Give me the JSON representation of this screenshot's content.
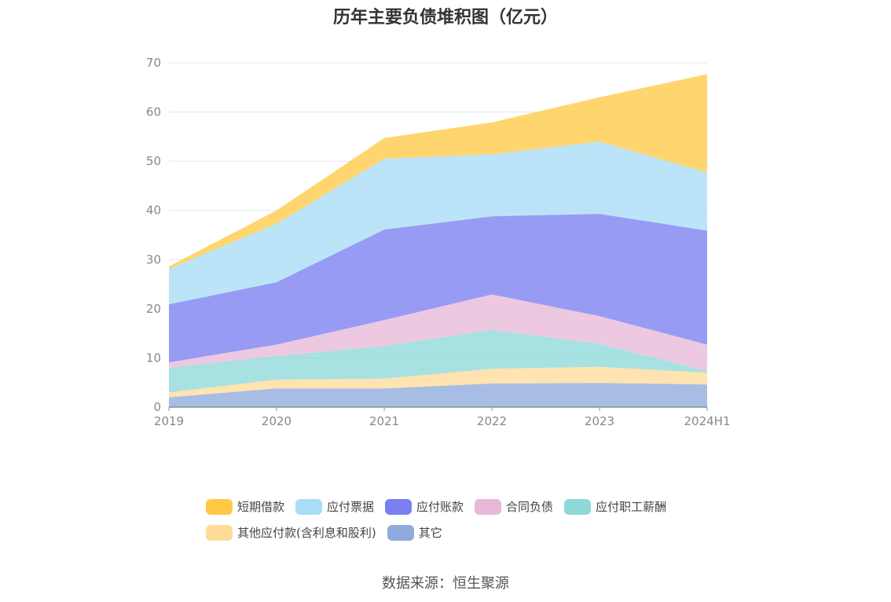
{
  "chart_data": {
    "type": "area",
    "stacked": true,
    "title": "历年主要负债堆积图（亿元）",
    "source_label": "数据来源：恒生聚源",
    "categories": [
      "2019",
      "2020",
      "2021",
      "2022",
      "2023",
      "2024H1"
    ],
    "ylim": [
      0,
      70
    ],
    "yticks": [
      0,
      10,
      20,
      30,
      40,
      50,
      60,
      70
    ],
    "grid": true,
    "legend_position": "bottom",
    "series": [
      {
        "name": "其它",
        "color": "#8faadc",
        "values": [
          2.0,
          3.8,
          3.8,
          4.8,
          4.9,
          4.6
        ]
      },
      {
        "name": "其他应付款(含利息和股利)",
        "color": "#ffdb9a",
        "values": [
          1.0,
          1.8,
          2.0,
          3.0,
          3.3,
          2.4
        ]
      },
      {
        "name": "应付职工薪酬",
        "color": "#8ed8d8",
        "values": [
          5.0,
          4.8,
          6.6,
          7.9,
          4.7,
          0.3
        ]
      },
      {
        "name": "合同负债",
        "color": "#e8b8d8",
        "values": [
          1.1,
          2.3,
          5.3,
          7.2,
          5.6,
          5.4
        ]
      },
      {
        "name": "应付账款",
        "color": "#7b7ff0",
        "values": [
          11.8,
          12.7,
          18.4,
          15.9,
          20.8,
          23.2
        ]
      },
      {
        "name": "应付票据",
        "color": "#a8dcf7",
        "values": [
          7.2,
          11.9,
          14.4,
          12.6,
          14.7,
          11.8
        ]
      },
      {
        "name": "短期借款",
        "color": "#ffc947",
        "values": [
          0.5,
          2.7,
          4.2,
          6.5,
          9.0,
          20.0
        ]
      }
    ],
    "legend_order": [
      "短期借款",
      "应付票据",
      "应付账款",
      "合同负债",
      "应付职工薪酬",
      "其他应付款(含利息和股利)",
      "其它"
    ]
  }
}
